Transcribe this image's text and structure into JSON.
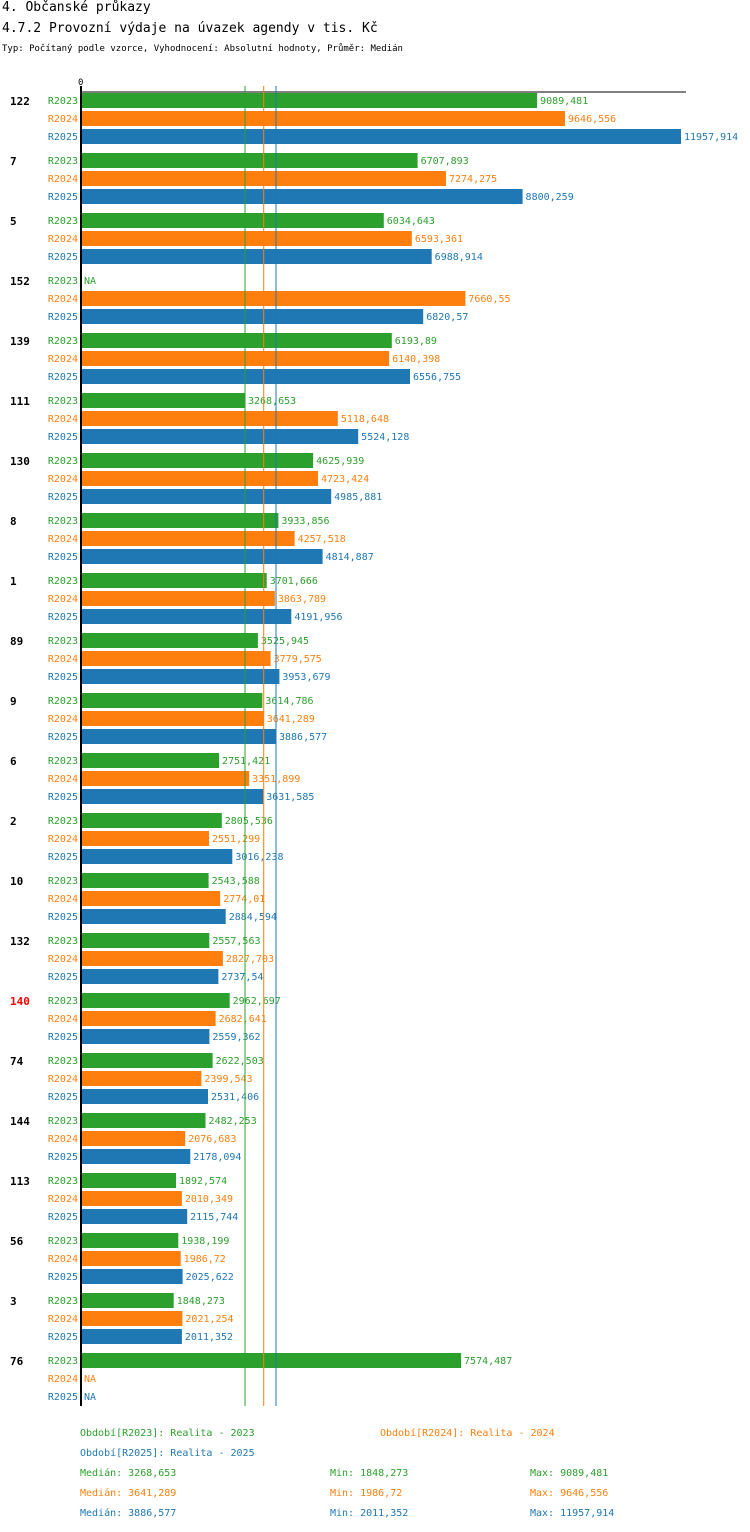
{
  "header": {
    "section": "4. Občanské průkazy",
    "title": "4.7.2 Provozní výdaje na úvazek agendy v tis. Kč",
    "subtitle": "Typ: Počítaný podle vzorce, Vyhodnocení: Absolutní hodnoty, Průměr: Medián"
  },
  "colors": {
    "R2023": "#2ca02c",
    "R2024": "#ff7f0e",
    "R2025": "#1f77b4",
    "highlight": "#ff0000",
    "axis": "#000000"
  },
  "chart_data": {
    "type": "bar",
    "orientation": "horizontal",
    "xlim": [
      0,
      11957.914
    ],
    "axis_zero_label": "0",
    "series_names": [
      "R2023",
      "R2024",
      "R2025"
    ],
    "groups": [
      {
        "label": "122",
        "highlight": false,
        "values": [
          9089.481,
          9646.556,
          11957.914
        ],
        "texts": [
          "9089,481",
          "9646,556",
          "11957,914"
        ]
      },
      {
        "label": "7",
        "highlight": false,
        "values": [
          6707.893,
          7274.275,
          8800.259
        ],
        "texts": [
          "6707,893",
          "7274,275",
          "8800,259"
        ]
      },
      {
        "label": "5",
        "highlight": false,
        "values": [
          6034.643,
          6593.361,
          6988.914
        ],
        "texts": [
          "6034,643",
          "6593,361",
          "6988,914"
        ]
      },
      {
        "label": "152",
        "highlight": false,
        "values": [
          null,
          7660.55,
          6820.57
        ],
        "texts": [
          "NA",
          "7660,55",
          "6820,57"
        ]
      },
      {
        "label": "139",
        "highlight": false,
        "values": [
          6193.89,
          6140.398,
          6556.755
        ],
        "texts": [
          "6193,89",
          "6140,398",
          "6556,755"
        ]
      },
      {
        "label": "111",
        "highlight": false,
        "values": [
          3268.653,
          5118.648,
          5524.128
        ],
        "texts": [
          "3268,653",
          "5118,648",
          "5524,128"
        ]
      },
      {
        "label": "130",
        "highlight": false,
        "values": [
          4625.939,
          4723.424,
          4985.881
        ],
        "texts": [
          "4625,939",
          "4723,424",
          "4985,881"
        ]
      },
      {
        "label": "8",
        "highlight": false,
        "values": [
          3933.856,
          4257.518,
          4814.887
        ],
        "texts": [
          "3933,856",
          "4257,518",
          "4814,887"
        ]
      },
      {
        "label": "1",
        "highlight": false,
        "values": [
          3701.666,
          3863.789,
          4191.956
        ],
        "texts": [
          "3701,666",
          "3863,789",
          "4191,956"
        ]
      },
      {
        "label": "89",
        "highlight": false,
        "values": [
          3525.945,
          3779.575,
          3953.679
        ],
        "texts": [
          "3525,945",
          "3779,575",
          "3953,679"
        ]
      },
      {
        "label": "9",
        "highlight": false,
        "values": [
          3614.786,
          3641.289,
          3886.577
        ],
        "texts": [
          "3614,786",
          "3641,289",
          "3886,577"
        ]
      },
      {
        "label": "6",
        "highlight": false,
        "values": [
          2751.421,
          3351.899,
          3631.585
        ],
        "texts": [
          "2751,421",
          "3351,899",
          "3631,585"
        ]
      },
      {
        "label": "2",
        "highlight": false,
        "values": [
          2805.536,
          2551.299,
          3016.238
        ],
        "texts": [
          "2805,536",
          "2551,299",
          "3016,238"
        ]
      },
      {
        "label": "10",
        "highlight": false,
        "values": [
          2543.588,
          2774.01,
          2884.594
        ],
        "texts": [
          "2543,588",
          "2774,01",
          "2884,594"
        ]
      },
      {
        "label": "132",
        "highlight": false,
        "values": [
          2557.563,
          2827.703,
          2737.54
        ],
        "texts": [
          "2557,563",
          "2827,703",
          "2737,54"
        ]
      },
      {
        "label": "140",
        "highlight": true,
        "values": [
          2962.697,
          2682.641,
          2559.362
        ],
        "texts": [
          "2962,697",
          "2682,641",
          "2559,362"
        ]
      },
      {
        "label": "74",
        "highlight": false,
        "values": [
          2622.503,
          2399.543,
          2531.406
        ],
        "texts": [
          "2622,503",
          "2399,543",
          "2531,406"
        ]
      },
      {
        "label": "144",
        "highlight": false,
        "values": [
          2482.253,
          2076.683,
          2178.094
        ],
        "texts": [
          "2482,253",
          "2076,683",
          "2178,094"
        ]
      },
      {
        "label": "113",
        "highlight": false,
        "values": [
          1892.574,
          2010.349,
          2115.744
        ],
        "texts": [
          "1892,574",
          "2010,349",
          "2115,744"
        ]
      },
      {
        "label": "56",
        "highlight": false,
        "values": [
          1938.199,
          1986.72,
          2025.622
        ],
        "texts": [
          "1938,199",
          "1986,72",
          "2025,622"
        ]
      },
      {
        "label": "3",
        "highlight": false,
        "values": [
          1848.273,
          2021.254,
          2011.352
        ],
        "texts": [
          "1848,273",
          "2021,254",
          "2011,352"
        ]
      },
      {
        "label": "76",
        "highlight": false,
        "values": [
          7574.487,
          null,
          null
        ],
        "texts": [
          "7574,487",
          "NA",
          "NA"
        ]
      }
    ],
    "medians": [
      3268.653,
      3641.289,
      3886.577
    ]
  },
  "footer": {
    "legend": [
      {
        "series": "R2023",
        "text": "Období[R2023]: Realita - 2023"
      },
      {
        "series": "R2024",
        "text": "Období[R2024]: Realita - 2024"
      },
      {
        "series": "R2025",
        "text": "Období[R2025]: Realita - 2025"
      }
    ],
    "stats": [
      {
        "series": "R2023",
        "median": "Medián: 3268,653",
        "min": "Min: 1848,273",
        "max": "Max: 9089,481"
      },
      {
        "series": "R2024",
        "median": "Medián: 3641,289",
        "min": "Min: 1986,72",
        "max": "Max: 9646,556"
      },
      {
        "series": "R2025",
        "median": "Medián: 3886,577",
        "min": "Min: 2011,352",
        "max": "Max: 11957,914"
      }
    ]
  }
}
